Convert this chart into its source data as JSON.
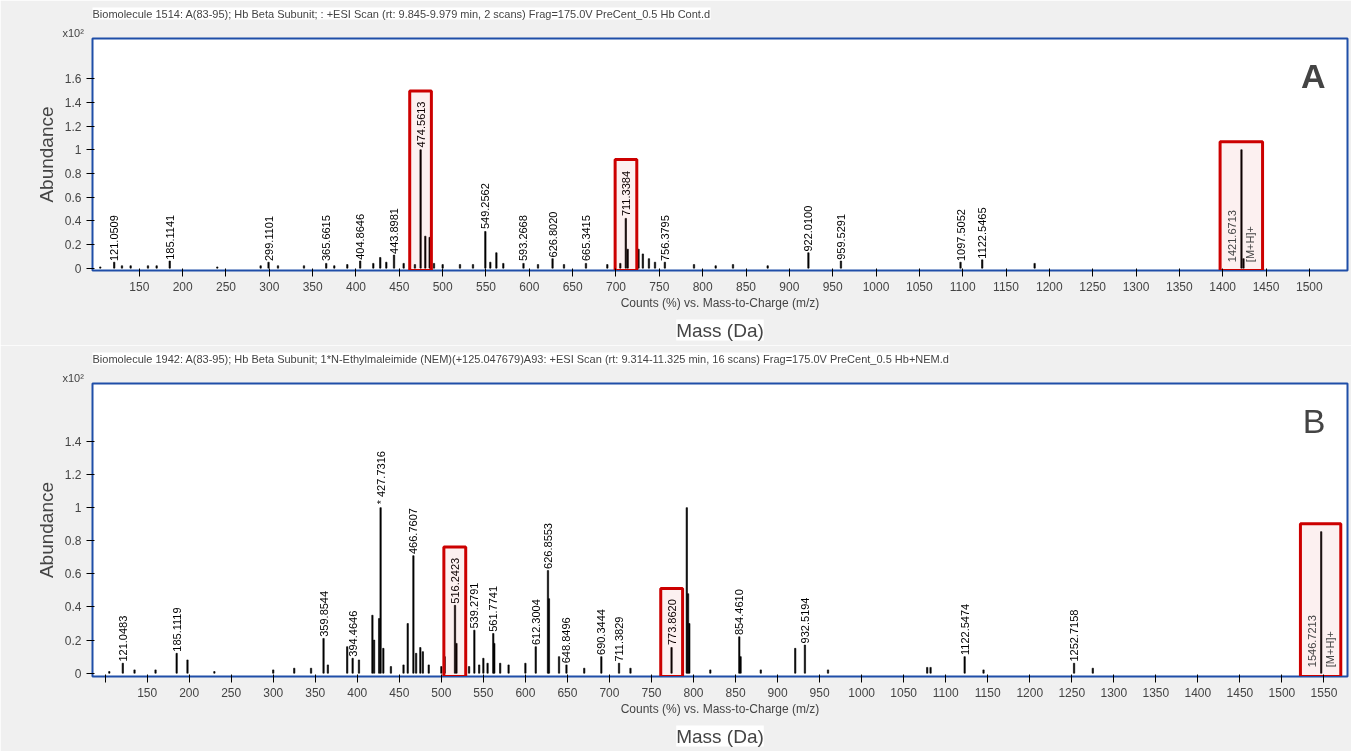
{
  "chart_data": [
    {
      "type": "bar",
      "title": "Biomolecule 1514: A(83-95); Hb Beta Subunit; : +ESI Scan (rt: 9.845-9.979 min, 2 scans) Frag=175.0V PreCent_0.5 Hb Cont.d",
      "xlabel": "Counts (%) vs. Mass-to-Charge (m/z)",
      "ylabel": "Abundance",
      "color": "#000000",
      "x": [
        105,
        121.0509,
        130,
        140,
        160,
        170,
        185.1141,
        240,
        290,
        299.1101,
        310,
        340,
        365.6615,
        375,
        390,
        404.8646,
        420,
        428,
        435,
        443.8981,
        455,
        468,
        474.5613,
        480,
        485,
        490,
        500,
        520,
        535,
        549.2562,
        555,
        562,
        570,
        593.2668,
        610,
        626.802,
        640,
        665.3415,
        690,
        705,
        711.3384,
        713.5,
        726,
        731,
        738,
        745,
        756.3795,
        790,
        815,
        835,
        875,
        922.01,
        959.5291,
        1097.5052,
        1122.5465,
        1183,
        1421.6713,
        1424
      ],
      "values": [
        0.01,
        0.05,
        0.02,
        0.02,
        0.02,
        0.02,
        0.06,
        0.01,
        0.02,
        0.05,
        0.02,
        0.02,
        0.04,
        0.02,
        0.03,
        0.06,
        0.04,
        0.09,
        0.05,
        0.11,
        0.04,
        0.03,
        1.0,
        0.27,
        0.26,
        0.04,
        0.03,
        0.03,
        0.03,
        0.31,
        0.05,
        0.13,
        0.04,
        0.04,
        0.03,
        0.08,
        0.03,
        0.04,
        0.03,
        0.04,
        0.42,
        0.16,
        0.16,
        0.12,
        0.08,
        0.05,
        0.05,
        0.03,
        0.02,
        0.03,
        0.02,
        0.13,
        0.06,
        0.05,
        0.07,
        0.04,
        1.0,
        0.08
      ],
      "xlim": [
        96,
        1544
      ],
      "ylim": [
        -0.02,
        1.94
      ],
      "xticks": [
        150,
        200,
        250,
        300,
        350,
        400,
        450,
        500,
        550,
        600,
        650,
        700,
        750,
        800,
        850,
        900,
        950,
        1000,
        1050,
        1100,
        1150,
        1200,
        1250,
        1300,
        1350,
        1400,
        1450,
        1500
      ],
      "yticks": [
        0,
        0.2,
        0.4,
        0.6,
        0.8,
        1,
        1.2,
        1.4,
        1.6
      ],
      "grid": false,
      "bands": [
        {
          "axis": "x",
          "from": 462,
          "to": 487,
          "color": "#cc0000"
        },
        {
          "axis": "x",
          "from": 699,
          "to": 724,
          "color": "#cc0000"
        },
        {
          "axis": "x",
          "from": 1397,
          "to": 1446,
          "color": "#cc0000"
        }
      ],
      "annotations": [
        "x10²",
        "A",
        "Mass (Da)",
        {
          "text": "121.0509",
          "x": 121.0509,
          "y": 0.06
        },
        {
          "text": "185.1141",
          "x": 185.1141,
          "y": 0.07
        },
        {
          "text": "299.1101",
          "x": 299.1101,
          "y": 0.06
        },
        {
          "text": "365.6615",
          "x": 365.6615,
          "y": 0.06
        },
        {
          "text": "404.8646",
          "x": 404.8646,
          "y": 0.07
        },
        {
          "text": "443.8981",
          "x": 443.8981,
          "y": 0.12
        },
        {
          "text": "474.5613",
          "x": 474.5613,
          "y": 1.02
        },
        {
          "text": "549.2562",
          "x": 549.2562,
          "y": 0.33
        },
        {
          "text": "593.2668",
          "x": 593.2668,
          "y": 0.06
        },
        {
          "text": "626.8020",
          "x": 626.802,
          "y": 0.09
        },
        {
          "text": "665.3415",
          "x": 665.3415,
          "y": 0.06
        },
        {
          "text": "711.3384",
          "x": 711.3384,
          "y": 0.44
        },
        {
          "text": "756.3795",
          "x": 756.3795,
          "y": 0.06
        },
        {
          "text": "922.0100",
          "x": 922.01,
          "y": 0.14
        },
        {
          "text": "959.5291",
          "x": 959.5291,
          "y": 0.07
        },
        {
          "text": "1097.5052",
          "x": 1097.5052,
          "y": 0.06
        },
        {
          "text": "1122.5465",
          "x": 1122.5465,
          "y": 0.08
        },
        "1421.6713",
        "[M+H]+"
      ]
    },
    {
      "type": "bar",
      "title": "Biomolecule 1942: A(83-95); Hb Beta Subunit; 1*N-Ethylmaleimide (NEM)(+125.047679)A93: +ESI Scan (rt: 9.314-11.325 min, 16 scans) Frag=175.0V PreCent_0.5 Hb+NEM.d",
      "xlabel": "Counts (%) vs. Mass-to-Charge (m/z)",
      "ylabel": "Abundance",
      "color": "#000000",
      "x": [
        105,
        121.0483,
        135,
        160,
        185.1119,
        198,
        230,
        300,
        325,
        345,
        359.8544,
        365,
        388,
        394.4646,
        402,
        418,
        420,
        426,
        427.7316,
        431,
        440,
        455,
        460,
        466.7607,
        470,
        475,
        478,
        485,
        500,
        504,
        516.2423,
        518,
        533,
        539.2791,
        545,
        550,
        555,
        561.7741,
        563,
        570,
        580,
        600,
        612.3004,
        626.8553,
        628,
        640,
        648.8496,
        670,
        690.3444,
        711.3829,
        725,
        773.862,
        792,
        793.5,
        795,
        820,
        854.461,
        856,
        880,
        921,
        932.5194,
        960,
        1078,
        1082,
        1122.5474,
        1145,
        1252.7158,
        1275,
        1546.7213
      ],
      "values": [
        0.01,
        0.06,
        0.02,
        0.02,
        0.12,
        0.08,
        0.01,
        0.02,
        0.03,
        0.03,
        0.21,
        0.05,
        0.16,
        0.09,
        0.08,
        0.35,
        0.2,
        0.33,
        1.0,
        0.15,
        0.04,
        0.05,
        0.3,
        0.71,
        0.12,
        0.155,
        0.13,
        0.05,
        0.04,
        0.1,
        0.41,
        0.18,
        0.04,
        0.26,
        0.05,
        0.09,
        0.06,
        0.24,
        0.18,
        0.06,
        0.05,
        0.06,
        0.16,
        0.62,
        0.45,
        0.1,
        0.05,
        0.03,
        0.1,
        0.06,
        0.03,
        0.155,
        1.0,
        0.48,
        0.3,
        0.02,
        0.22,
        0.1,
        0.02,
        0.15,
        0.17,
        0.02,
        0.035,
        0.035,
        0.1,
        0.02,
        0.06,
        0.03,
        0.855
      ],
      "xlim": [
        85,
        1578
      ],
      "ylim": [
        -0.02,
        1.75
      ],
      "xticks": [
        {
          "value": 100,
          "label": null
        },
        150,
        200,
        250,
        300,
        350,
        400,
        450,
        500,
        550,
        600,
        650,
        700,
        750,
        800,
        850,
        900,
        950,
        1000,
        1050,
        1100,
        1150,
        1200,
        1250,
        1300,
        1350,
        1400,
        1450,
        1500,
        1550
      ],
      "yticks": [
        0,
        0.2,
        0.4,
        0.6,
        0.8,
        1,
        1.2,
        1.4
      ],
      "grid": false,
      "bands": [
        {
          "axis": "x",
          "from": 503,
          "to": 529,
          "color": "#cc0000"
        },
        {
          "axis": "x",
          "from": 761,
          "to": 787,
          "color": "#cc0000"
        },
        {
          "axis": "x",
          "from": 1522,
          "to": 1570,
          "color": "#cc0000"
        }
      ],
      "annotations": [
        "x10²",
        "B",
        "Mass (Da)",
        {
          "text": "121.0483",
          "x": 121.0483,
          "y": 0.07
        },
        {
          "text": "185.1119",
          "x": 185.1119,
          "y": 0.13
        },
        {
          "text": "359.8544",
          "x": 359.8544,
          "y": 0.22
        },
        {
          "text": "394.4646",
          "x": 394.4646,
          "y": 0.1
        },
        {
          "text": "* 427.7316",
          "x": 427.7316,
          "y": 1.02
        },
        {
          "text": "466.7607",
          "x": 466.7607,
          "y": 0.72
        },
        {
          "text": "516.2423",
          "x": 516.2423,
          "y": 0.42
        },
        {
          "text": "539.2791",
          "x": 539.2791,
          "y": 0.27
        },
        {
          "text": "561.7741",
          "x": 561.7741,
          "y": 0.25
        },
        {
          "text": "612.3004",
          "x": 612.3004,
          "y": 0.17
        },
        {
          "text": "626.8553",
          "x": 626.8553,
          "y": 0.63
        },
        {
          "text": "648.8496",
          "x": 648.8496,
          "y": 0.06
        },
        {
          "text": "690.3444",
          "x": 690.3444,
          "y": 0.11
        },
        {
          "text": "711.3829",
          "x": 711.3829,
          "y": 0.07
        },
        {
          "text": "773.8620",
          "x": 773.862,
          "y": 0.17
        },
        {
          "text": "854.4610",
          "x": 854.461,
          "y": 0.23
        },
        {
          "text": "932.5194",
          "x": 932.5194,
          "y": 0.18
        },
        {
          "text": "1122.5474",
          "x": 1122.5474,
          "y": 0.11
        },
        {
          "text": "1252.7158",
          "x": 1252.7158,
          "y": 0.07
        },
        "1546.7213",
        "[M+H]+"
      ]
    }
  ]
}
